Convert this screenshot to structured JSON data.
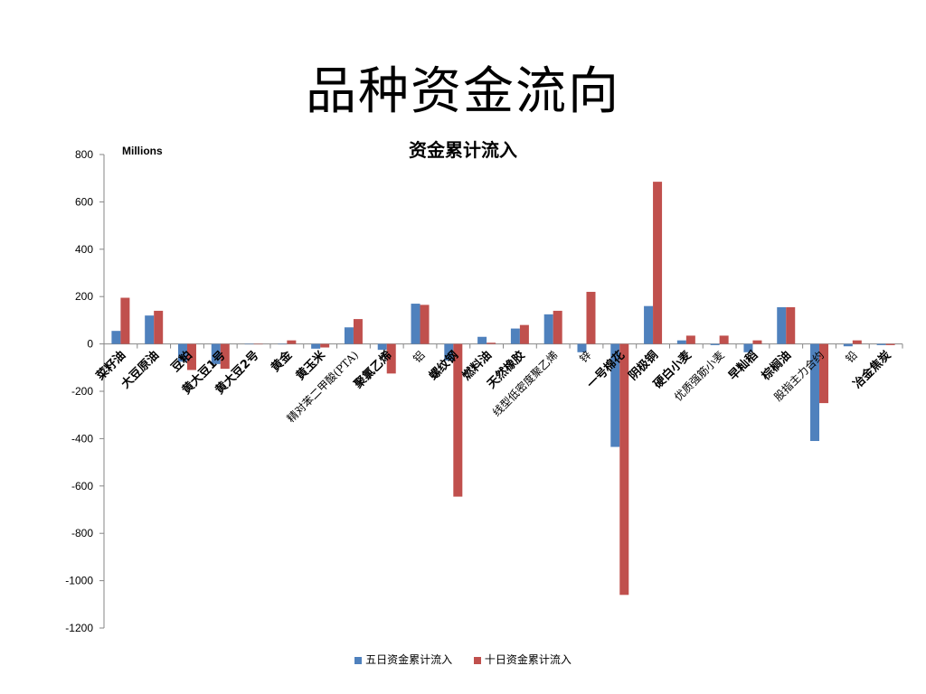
{
  "page_title": "品种资金流向",
  "chart_data": {
    "type": "bar",
    "title": "资金累计流入",
    "units_label": "Millions",
    "ylim": [
      -1200,
      800
    ],
    "yticks": [
      800,
      600,
      400,
      200,
      0,
      -200,
      -400,
      -600,
      -800,
      -1000,
      -1200
    ],
    "legend_position": "bottom",
    "grid": false,
    "categories": [
      {
        "label": "菜籽油",
        "bold": true
      },
      {
        "label": "大豆原油",
        "bold": true
      },
      {
        "label": "豆粕",
        "bold": true
      },
      {
        "label": "黄大豆1号",
        "bold": true
      },
      {
        "label": "黄大豆2号",
        "bold": true
      },
      {
        "label": "黄金",
        "bold": true
      },
      {
        "label": "黄玉米",
        "bold": true
      },
      {
        "label": "精对苯二甲酸(PTA)",
        "bold": false
      },
      {
        "label": "聚氯乙烯",
        "bold": true
      },
      {
        "label": "铝",
        "bold": false
      },
      {
        "label": "螺纹钢",
        "bold": true
      },
      {
        "label": "燃料油",
        "bold": true
      },
      {
        "label": "天然橡胶",
        "bold": true
      },
      {
        "label": "线型低密度聚乙烯",
        "bold": false
      },
      {
        "label": "锌",
        "bold": false
      },
      {
        "label": "一号棉花",
        "bold": true
      },
      {
        "label": "阴极铜",
        "bold": true
      },
      {
        "label": "硬白小麦",
        "bold": true
      },
      {
        "label": "优质强筋小麦",
        "bold": false
      },
      {
        "label": "早籼稻",
        "bold": true
      },
      {
        "label": "棕榈油",
        "bold": true
      },
      {
        "label": "股指主力合约",
        "bold": false
      },
      {
        "label": "铅",
        "bold": false
      },
      {
        "label": "冶金焦炭",
        "bold": true
      }
    ],
    "series": [
      {
        "name": "五日资金累计流入",
        "color": "#4F81BD",
        "values": [
          55,
          120,
          -75,
          -85,
          0,
          0,
          -20,
          70,
          -25,
          170,
          -70,
          30,
          65,
          125,
          -35,
          -435,
          160,
          15,
          -5,
          -35,
          155,
          -410,
          -10,
          -5
        ]
      },
      {
        "name": "十日资金累计流入",
        "color": "#C0504D",
        "values": [
          195,
          140,
          -110,
          -105,
          0,
          15,
          -15,
          105,
          -125,
          165,
          -645,
          5,
          80,
          140,
          220,
          -1060,
          685,
          35,
          35,
          15,
          155,
          -250,
          15,
          -5
        ]
      }
    ]
  }
}
